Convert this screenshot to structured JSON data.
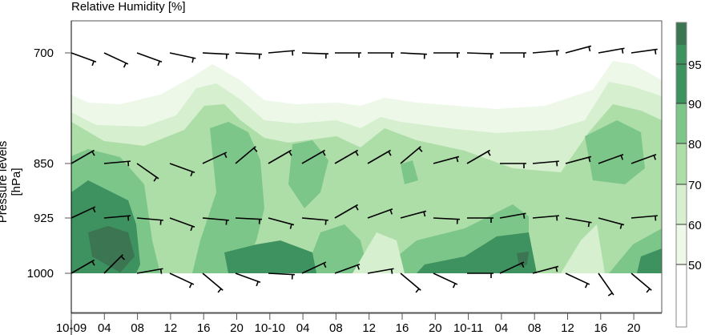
{
  "chart_data": {
    "type": "heatmap",
    "subtype": "filled-contour with wind barbs",
    "title": "Relative Humidity [%]",
    "xlabel": "",
    "ylabel": "Pressure levels [hPa]",
    "x_tick_labels": [
      "10-09",
      "04",
      "08",
      "12",
      "16",
      "20",
      "10-10",
      "04",
      "08",
      "12",
      "16",
      "20",
      "10-11",
      "04",
      "08",
      "12",
      "16",
      "20"
    ],
    "y_tick_labels": [
      "700",
      "850",
      "925",
      "1000"
    ],
    "y_levels": [
      700,
      850,
      925,
      1000
    ],
    "colorbar": {
      "levels": [
        50,
        60,
        70,
        80,
        90,
        95
      ],
      "tick_labels": [
        "50",
        "60",
        "70",
        "80",
        "90",
        "95"
      ],
      "colors": [
        "#ffffff",
        "#edf8e9",
        "#d5efcf",
        "#addea7",
        "#7dc68a",
        "#3d9260",
        "#3c7552"
      ]
    },
    "grid": false,
    "contour_bands": [
      {
        "level": 50,
        "color": "#edf8e9",
        "top_profile": [
          [
            89,
            118
          ],
          [
            110,
            128
          ],
          [
            150,
            130
          ],
          [
            200,
            118
          ],
          [
            240,
            96
          ],
          [
            265,
            80
          ],
          [
            300,
            100
          ],
          [
            330,
            125
          ],
          [
            370,
            130
          ],
          [
            420,
            128
          ],
          [
            450,
            132
          ],
          [
            480,
            122
          ],
          [
            520,
            128
          ],
          [
            570,
            132
          ],
          [
            620,
            136
          ],
          [
            680,
            132
          ],
          [
            740,
            112
          ],
          [
            765,
            76
          ],
          [
            790,
            80
          ],
          [
            826,
            100
          ]
        ]
      },
      {
        "level": 60,
        "color": "#d5efcf",
        "top_profile": [
          [
            89,
            140
          ],
          [
            120,
            156
          ],
          [
            180,
            158
          ],
          [
            220,
            144
          ],
          [
            245,
            110
          ],
          [
            270,
            104
          ],
          [
            300,
            124
          ],
          [
            330,
            150
          ],
          [
            370,
            154
          ],
          [
            420,
            150
          ],
          [
            450,
            160
          ],
          [
            475,
            146
          ],
          [
            500,
            152
          ],
          [
            560,
            160
          ],
          [
            620,
            166
          ],
          [
            690,
            162
          ],
          [
            730,
            150
          ],
          [
            760,
            102
          ],
          [
            790,
            108
          ],
          [
            826,
            120
          ]
        ]
      },
      {
        "level": 70,
        "color": "#addea7",
        "top_profile": [
          [
            89,
            152
          ],
          [
            130,
            176
          ],
          [
            180,
            182
          ],
          [
            230,
            162
          ],
          [
            255,
            132
          ],
          [
            280,
            130
          ],
          [
            300,
            150
          ],
          [
            330,
            172
          ],
          [
            360,
            178
          ],
          [
            420,
            170
          ],
          [
            450,
            184
          ],
          [
            480,
            160
          ],
          [
            520,
            175
          ],
          [
            580,
            188
          ],
          [
            640,
            210
          ],
          [
            700,
            215
          ],
          [
            735,
            165
          ],
          [
            765,
            130
          ],
          [
            800,
            138
          ],
          [
            826,
            150
          ]
        ]
      }
    ],
    "wind_barbs": {
      "levels": [
        700,
        850,
        925,
        1000
      ],
      "x_positions": [
        89,
        130,
        171,
        212,
        253,
        294,
        335,
        377,
        418,
        459,
        500,
        541,
        583,
        624,
        665,
        706,
        747,
        788
      ],
      "note": "barbs at ~4h intervals per level; mostly westerly at 700 hPa"
    }
  }
}
